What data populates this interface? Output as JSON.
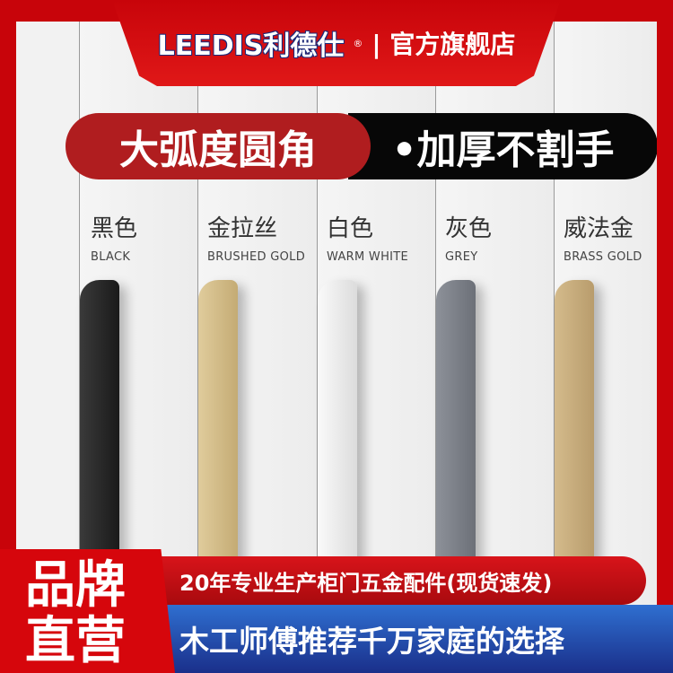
{
  "header": {
    "logo": "LEEDIS利德仕",
    "registered": "®",
    "store": "| 官方旗舰店"
  },
  "banner": {
    "left": "大弧度圆角",
    "right": "•加厚不割手"
  },
  "colors": [
    {
      "cn": "黑色",
      "en": "BLACK",
      "hex": "#2a2a2a"
    },
    {
      "cn": "金拉丝",
      "en": "BRUSHED GOLD",
      "hex": "#d3bd8a"
    },
    {
      "cn": "白色",
      "en": "WARM WHITE",
      "hex": "#f4f4f4"
    },
    {
      "cn": "灰色",
      "en": "GREY",
      "hex": "#7f838c"
    },
    {
      "cn": "威法金",
      "en": "BRASS GOLD",
      "hex": "#c8ad7c"
    }
  ],
  "footer": {
    "brand_line1": "品牌",
    "brand_line2": "直营",
    "tagline1": "20年专业生产柜门五金配件(现货速发)",
    "tagline2": "木工师傅推荐千万家庭的选择"
  },
  "accent": "#c8040a"
}
